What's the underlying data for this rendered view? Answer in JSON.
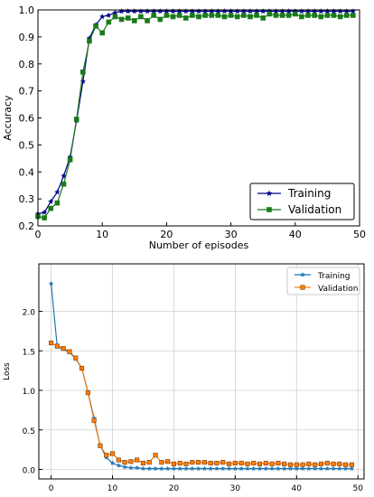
{
  "chart_data": [
    {
      "type": "line",
      "title": "",
      "xlabel": "Number of episodes",
      "ylabel": "Accuracy",
      "xlim": [
        0,
        50
      ],
      "ylim": [
        0.2,
        1.0
      ],
      "xticks": [
        0,
        10,
        20,
        30,
        40,
        50
      ],
      "yticks": [
        0.2,
        0.3,
        0.4,
        0.5,
        0.6,
        0.7,
        0.8,
        0.9,
        1.0
      ],
      "grid": false,
      "legend": "bottom-right",
      "series": [
        {
          "name": "Training",
          "color": "#00008b",
          "marker": "star",
          "x": [
            0,
            1,
            2,
            3,
            4,
            5,
            6,
            7,
            8,
            9,
            10,
            11,
            12,
            13,
            14,
            15,
            16,
            17,
            18,
            19,
            20,
            21,
            22,
            23,
            24,
            25,
            26,
            27,
            28,
            29,
            30,
            31,
            32,
            33,
            34,
            35,
            36,
            37,
            38,
            39,
            40,
            41,
            42,
            43,
            44,
            45,
            46,
            47,
            48,
            49
          ],
          "values": [
            0.245,
            0.25,
            0.29,
            0.325,
            0.385,
            0.455,
            0.59,
            0.735,
            0.895,
            0.945,
            0.975,
            0.98,
            0.99,
            0.995,
            0.995,
            0.995,
            0.995,
            0.995,
            0.995,
            0.995,
            0.995,
            0.995,
            0.995,
            0.995,
            0.995,
            0.995,
            0.995,
            0.995,
            0.995,
            0.995,
            0.995,
            0.995,
            0.995,
            0.995,
            0.995,
            0.995,
            0.995,
            0.995,
            0.995,
            0.995,
            0.995,
            0.995,
            0.995,
            0.995,
            0.995,
            0.995,
            0.995,
            0.995,
            0.995,
            0.995
          ]
        },
        {
          "name": "Validation",
          "color": "#1a7a1a",
          "marker": "square",
          "x": [
            0,
            1,
            2,
            3,
            4,
            5,
            6,
            7,
            8,
            9,
            10,
            11,
            12,
            13,
            14,
            15,
            16,
            17,
            18,
            19,
            20,
            21,
            22,
            23,
            24,
            25,
            26,
            27,
            28,
            29,
            30,
            31,
            32,
            33,
            34,
            35,
            36,
            37,
            38,
            39,
            40,
            41,
            42,
            43,
            44,
            45,
            46,
            47,
            48,
            49
          ],
          "values": [
            0.235,
            0.23,
            0.265,
            0.285,
            0.355,
            0.445,
            0.595,
            0.77,
            0.885,
            0.94,
            0.915,
            0.955,
            0.975,
            0.965,
            0.97,
            0.96,
            0.975,
            0.96,
            0.98,
            0.965,
            0.98,
            0.975,
            0.98,
            0.97,
            0.98,
            0.975,
            0.98,
            0.98,
            0.98,
            0.975,
            0.98,
            0.975,
            0.98,
            0.975,
            0.98,
            0.97,
            0.985,
            0.98,
            0.98,
            0.98,
            0.985,
            0.975,
            0.98,
            0.98,
            0.975,
            0.98,
            0.98,
            0.975,
            0.98,
            0.98
          ]
        }
      ]
    },
    {
      "type": "line",
      "title": "",
      "xlabel": "",
      "ylabel": "Loss",
      "xlim": [
        -2,
        51
      ],
      "ylim": [
        -0.12,
        2.6
      ],
      "xticks": [
        0,
        10,
        20,
        30,
        40,
        50
      ],
      "yticks": [
        0.0,
        0.5,
        1.0,
        1.5,
        2.0
      ],
      "grid": true,
      "legend": "top-right",
      "series": [
        {
          "name": "Training",
          "color": "#1f77b4",
          "marker": "star",
          "x": [
            0,
            1,
            2,
            3,
            4,
            5,
            6,
            7,
            8,
            9,
            10,
            11,
            12,
            13,
            14,
            15,
            16,
            17,
            18,
            19,
            20,
            21,
            22,
            23,
            24,
            25,
            26,
            27,
            28,
            29,
            30,
            31,
            32,
            33,
            34,
            35,
            36,
            37,
            38,
            39,
            40,
            41,
            42,
            43,
            44,
            45,
            46,
            47,
            48,
            49
          ],
          "values": [
            2.35,
            1.55,
            1.52,
            1.48,
            1.4,
            1.28,
            0.98,
            0.65,
            0.3,
            0.15,
            0.08,
            0.05,
            0.03,
            0.02,
            0.02,
            0.01,
            0.01,
            0.01,
            0.01,
            0.01,
            0.01,
            0.01,
            0.01,
            0.01,
            0.01,
            0.01,
            0.01,
            0.01,
            0.01,
            0.01,
            0.01,
            0.01,
            0.01,
            0.01,
            0.01,
            0.01,
            0.01,
            0.01,
            0.01,
            0.01,
            0.01,
            0.01,
            0.01,
            0.01,
            0.01,
            0.01,
            0.01,
            0.01,
            0.01,
            0.01
          ]
        },
        {
          "name": "Validation",
          "color": "#ff7f0e",
          "marker": "square",
          "x": [
            0,
            1,
            2,
            3,
            4,
            5,
            6,
            7,
            8,
            9,
            10,
            11,
            12,
            13,
            14,
            15,
            16,
            17,
            18,
            19,
            20,
            21,
            22,
            23,
            24,
            25,
            26,
            27,
            28,
            29,
            30,
            31,
            32,
            33,
            34,
            35,
            36,
            37,
            38,
            39,
            40,
            41,
            42,
            43,
            44,
            45,
            46,
            47,
            48,
            49
          ],
          "values": [
            1.6,
            1.56,
            1.53,
            1.49,
            1.41,
            1.28,
            0.97,
            0.62,
            0.3,
            0.18,
            0.2,
            0.12,
            0.09,
            0.1,
            0.12,
            0.08,
            0.09,
            0.18,
            0.09,
            0.1,
            0.07,
            0.08,
            0.07,
            0.09,
            0.09,
            0.09,
            0.08,
            0.08,
            0.09,
            0.07,
            0.08,
            0.08,
            0.07,
            0.08,
            0.07,
            0.08,
            0.07,
            0.08,
            0.07,
            0.06,
            0.06,
            0.06,
            0.07,
            0.06,
            0.07,
            0.08,
            0.07,
            0.07,
            0.06,
            0.06
          ]
        }
      ]
    }
  ]
}
